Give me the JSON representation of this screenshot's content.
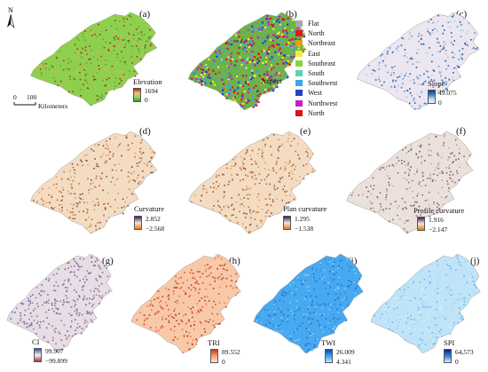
{
  "north_arrow_label": "N",
  "scale_bar": {
    "zero": "0",
    "distance": "100",
    "unit": "Kilometers"
  },
  "panels": [
    {
      "id": "a",
      "letter": "(a)",
      "legend_title": "Elevation",
      "max": "1694",
      "min": "0",
      "gradient": [
        "#b21f1f",
        "#e8c26a",
        "#9ed05a",
        "#2f9a3a"
      ]
    },
    {
      "id": "b",
      "letter": "(b)",
      "legend_title": "Aspect"
    },
    {
      "id": "c",
      "letter": "(c)",
      "legend_title": "Slope",
      "max": "49.075",
      "min": "0",
      "gradient": [
        "#0c3e8c",
        "#3d7fc0",
        "#bcd6ec",
        "#f7eef4"
      ]
    },
    {
      "id": "d",
      "letter": "(d)",
      "legend_title": "Curvature",
      "max": "2.852",
      "min": "−2.568",
      "gradient": [
        "#3b1a6b",
        "#f4e7d8",
        "#e07a10"
      ]
    },
    {
      "id": "e",
      "letter": "(e)",
      "legend_title": "Plan curvature",
      "max": "1.295",
      "min": "−1.538",
      "gradient": [
        "#3b1a6b",
        "#f4e7d8",
        "#e07a10"
      ]
    },
    {
      "id": "f",
      "letter": "(f)",
      "legend_title": "Profile curvature",
      "max": "1.916",
      "min": "−2.147",
      "gradient": [
        "#3b1a6b",
        "#f4e7d8",
        "#e07a10"
      ]
    },
    {
      "id": "g",
      "letter": "(g)",
      "legend_title": "CI",
      "max": "99.907",
      "min": "−99.899",
      "gradient": [
        "#2a57a8",
        "#f2f2f2",
        "#9c3a2e"
      ]
    },
    {
      "id": "h",
      "letter": "(h)",
      "legend_title": "TRI",
      "max": "89.552",
      "min": "0",
      "gradient": [
        "#c83a1a",
        "#f2a070",
        "#fbe9dc"
      ]
    },
    {
      "id": "i",
      "letter": "(i)",
      "legend_title": "TWI",
      "max": "26.009",
      "min": "4.341",
      "gradient": [
        "#0a47c9",
        "#3ea4f0",
        "#bfe6fb"
      ]
    },
    {
      "id": "j",
      "letter": "(j)",
      "legend_title": "SPI",
      "max": "64,573",
      "min": "0",
      "gradient": [
        "#06248a",
        "#3a83d6",
        "#d6eefa"
      ]
    }
  ],
  "aspect_classes": [
    {
      "label": "Flat",
      "color": "#a8a8a8"
    },
    {
      "label": "North",
      "color": "#e8141a"
    },
    {
      "label": "Northeast",
      "color": "#d8a21a"
    },
    {
      "label": "East",
      "color": "#f2ee3a"
    },
    {
      "label": "Southeast",
      "color": "#8ed23a"
    },
    {
      "label": "South",
      "color": "#5fd2b0"
    },
    {
      "label": "Southwest",
      "color": "#38a8e8"
    },
    {
      "label": "West",
      "color": "#2440c8"
    },
    {
      "label": "Northwest",
      "color": "#c81ec8"
    },
    {
      "label": "North",
      "color": "#d81414"
    }
  ],
  "map_fills": {
    "a": {
      "base": "#8ed04e",
      "speckle": [
        "#b52b20",
        "#e0b259",
        "#4fa83e"
      ]
    },
    "b": {
      "base": "#6db24a",
      "speckle": [
        "#e8141a",
        "#f2ee3a",
        "#38a8e8",
        "#2440c8",
        "#c81ec8"
      ]
    },
    "c": {
      "base": "#ece6f0",
      "speckle": [
        "#1f5ea8",
        "#5a93cc",
        "#a9c8e6"
      ]
    },
    "d": {
      "base": "#f4dcc2",
      "speckle": [
        "#b8713a",
        "#7a4a4a",
        "#e0a060"
      ]
    },
    "e": {
      "base": "#f4dcc2",
      "speckle": [
        "#b8713a",
        "#8a5a50",
        "#e0a060"
      ]
    },
    "f": {
      "base": "#ebe1dc",
      "speckle": [
        "#9a6a5a",
        "#c9a491",
        "#7a5d6a"
      ]
    },
    "g": {
      "base": "#e6dde6",
      "speckle": [
        "#8a6a8a",
        "#5c6ea6",
        "#b07a7a"
      ]
    },
    "h": {
      "base": "#f8c9a8",
      "speckle": [
        "#d8502a",
        "#e9784a",
        "#b83a1e"
      ]
    },
    "i": {
      "base": "#47a9ef",
      "speckle": [
        "#1c6fd8",
        "#8fd3f8",
        "#2b88e4"
      ]
    },
    "j": {
      "base": "#bfe4f8",
      "speckle": [
        "#9fd2f2",
        "#d8f0fb",
        "#6ab4ea"
      ]
    }
  }
}
